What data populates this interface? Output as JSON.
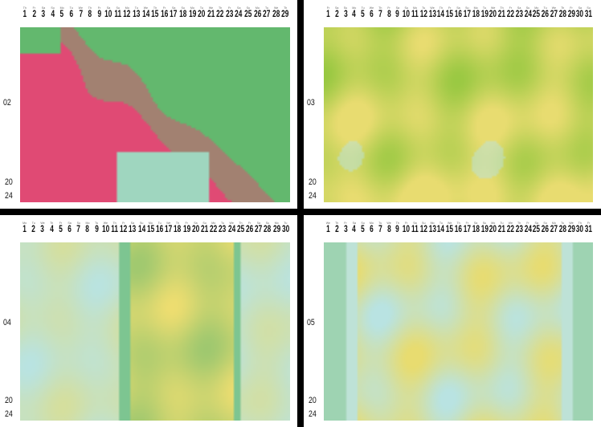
{
  "panels": [
    {
      "month_label": "02",
      "year_top": "20",
      "year_bottom": "24",
      "weekdays": [
        "Th",
        "Fr",
        "Sa",
        "Su",
        "Mo",
        "Tu",
        "We",
        "Th",
        "Fr",
        "Sa",
        "Su",
        "Mo",
        "Tu",
        "We",
        "Th",
        "Fr",
        "Sa",
        "Su",
        "Mo",
        "Tu",
        "We",
        "Th",
        "Fr",
        "Sa",
        "Su",
        "Mo",
        "Tu",
        "We",
        "Th"
      ],
      "days": [
        "1",
        "2",
        "3",
        "4",
        "5",
        "6",
        "7",
        "8",
        "9",
        "10",
        "11",
        "12",
        "13",
        "14",
        "15",
        "16",
        "17",
        "18",
        "19",
        "20",
        "21",
        "22",
        "23",
        "24",
        "25",
        "26",
        "27",
        "28",
        "29"
      ],
      "palette": "pink-green"
    },
    {
      "month_label": "03",
      "year_top": "20",
      "year_bottom": "24",
      "weekdays": [
        "Fr",
        "Sa",
        "Su",
        "Mo",
        "Tu",
        "We",
        "Th",
        "Fr",
        "Sa",
        "Su",
        "Mo",
        "Tu",
        "We",
        "Th",
        "Fr",
        "Sa",
        "Su",
        "Mo",
        "Tu",
        "We",
        "Th",
        "Fr",
        "Sa",
        "Su",
        "Mo",
        "Tu",
        "We",
        "Th",
        "Fr",
        "Sa",
        "Su"
      ],
      "days": [
        "1",
        "2",
        "3",
        "4",
        "5",
        "6",
        "7",
        "8",
        "9",
        "10",
        "11",
        "12",
        "13",
        "14",
        "15",
        "16",
        "17",
        "18",
        "19",
        "20",
        "21",
        "22",
        "23",
        "24",
        "25",
        "26",
        "27",
        "28",
        "29",
        "30",
        "31"
      ],
      "palette": "yellow-green"
    },
    {
      "month_label": "04",
      "year_top": "20",
      "year_bottom": "24",
      "weekdays": [
        "Mo",
        "Tu",
        "We",
        "Th",
        "Fr",
        "Sa",
        "Su",
        "Mo",
        "Tu",
        "We",
        "Th",
        "Fr",
        "Sa",
        "Su",
        "Mo",
        "Tu",
        "We",
        "Th",
        "Fr",
        "Sa",
        "Su",
        "Mo",
        "Tu",
        "We",
        "Th",
        "Fr",
        "Sa",
        "Su",
        "Mo",
        "Tu"
      ],
      "days": [
        "1",
        "2",
        "3",
        "4",
        "5",
        "6",
        "7",
        "8",
        "9",
        "10",
        "11",
        "12",
        "13",
        "14",
        "15",
        "16",
        "17",
        "18",
        "19",
        "20",
        "21",
        "22",
        "23",
        "24",
        "25",
        "26",
        "27",
        "28",
        "29",
        "30"
      ],
      "palette": "cyan-yellow-green"
    },
    {
      "month_label": "05",
      "year_top": "20",
      "year_bottom": "24",
      "weekdays": [
        "We",
        "Th",
        "Fr",
        "Sa",
        "Su",
        "Mo",
        "Tu",
        "We",
        "Th",
        "Fr",
        "Sa",
        "Su",
        "Mo",
        "Tu",
        "We",
        "Th",
        "Fr",
        "Sa",
        "Su",
        "Mo",
        "Tu",
        "We",
        "Th",
        "Fr",
        "Sa",
        "Su",
        "Mo",
        "Tu",
        "We",
        "Th",
        "Fr"
      ],
      "days": [
        "1",
        "2",
        "3",
        "4",
        "5",
        "6",
        "7",
        "8",
        "9",
        "10",
        "11",
        "12",
        "13",
        "14",
        "15",
        "16",
        "17",
        "18",
        "19",
        "20",
        "21",
        "22",
        "23",
        "24",
        "25",
        "26",
        "27",
        "28",
        "29",
        "30",
        "31"
      ],
      "palette": "yellow-cyan"
    }
  ],
  "colors": {
    "pink": "#e04a74",
    "green": "#63b86e",
    "yellow": "#e8dc70",
    "cyan": "#b9e3e2",
    "lime": "#8fc63c"
  }
}
